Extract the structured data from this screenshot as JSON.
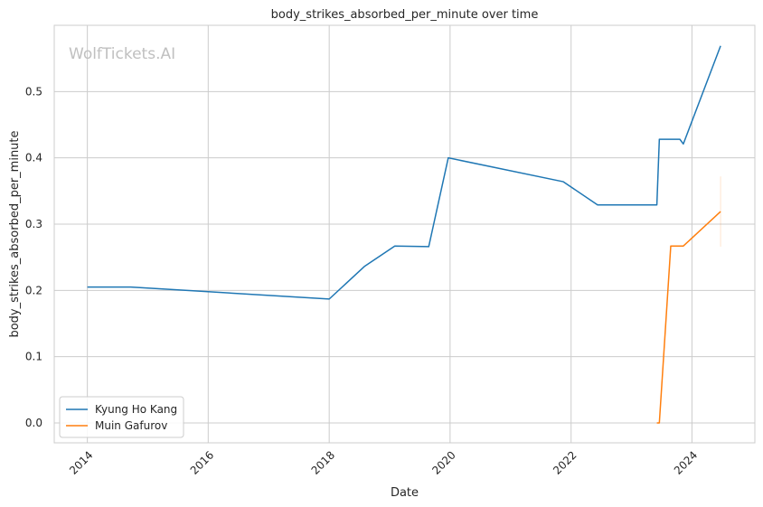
{
  "watermark": "WolfTickets.AI",
  "chart_data": {
    "type": "line",
    "title": "body_strikes_absorbed_per_minute over time",
    "xlabel": "Date",
    "ylabel": "body_strikes_absorbed_per_minute",
    "xlim": [
      "2013-06-15",
      "2025-01-15"
    ],
    "ylim": [
      -0.03,
      0.6
    ],
    "x_ticks": [
      "2014",
      "2016",
      "2018",
      "2020",
      "2022",
      "2024"
    ],
    "y_ticks": [
      "0.0",
      "0.1",
      "0.2",
      "0.3",
      "0.4",
      "0.5"
    ],
    "grid": true,
    "legend_position": "lower-left",
    "series": [
      {
        "name": "Kyung Ho Kang",
        "color": "#1f77b4",
        "points": [
          {
            "x": "2014-01-01",
            "y": 0.205
          },
          {
            "x": "2014-09-20",
            "y": 0.205
          },
          {
            "x": "2016-01-01",
            "y": 0.198
          },
          {
            "x": "2018-01-01",
            "y": 0.187
          },
          {
            "x": "2018-08-01",
            "y": 0.236
          },
          {
            "x": "2019-02-01",
            "y": 0.267
          },
          {
            "x": "2019-08-25",
            "y": 0.266
          },
          {
            "x": "2019-12-21",
            "y": 0.4
          },
          {
            "x": "2021-11-15",
            "y": 0.364
          },
          {
            "x": "2022-06-10",
            "y": 0.329
          },
          {
            "x": "2023-06-03",
            "y": 0.329
          },
          {
            "x": "2023-06-18",
            "y": 0.428
          },
          {
            "x": "2023-10-20",
            "y": 0.428
          },
          {
            "x": "2023-11-10",
            "y": 0.421
          },
          {
            "x": "2024-06-22",
            "y": 0.569
          }
        ]
      },
      {
        "name": "Muin Gafurov",
        "color": "#ff7f0e",
        "points": [
          {
            "x": "2023-06-03",
            "y": 0.0
          },
          {
            "x": "2023-06-18",
            "y": 0.0
          },
          {
            "x": "2023-08-26",
            "y": 0.267
          },
          {
            "x": "2023-11-10",
            "y": 0.267
          },
          {
            "x": "2024-06-22",
            "y": 0.319
          }
        ],
        "band": {
          "x": "2024-06-22",
          "low": 0.266,
          "high": 0.372
        }
      }
    ]
  }
}
